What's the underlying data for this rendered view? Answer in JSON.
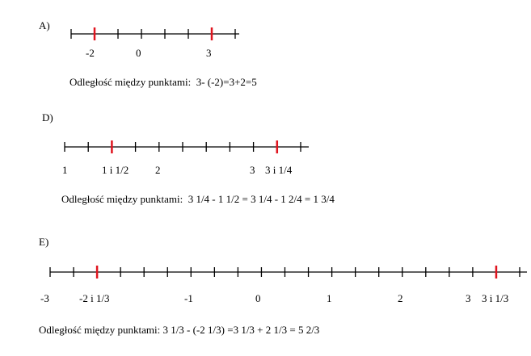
{
  "sections": [
    {
      "label": "A)",
      "tick_labels": [
        "-2",
        "0",
        "3"
      ],
      "text": "Odległość między punktami:  3- (-2)=3+2=5"
    },
    {
      "label": "D)",
      "tick_labels": [
        "1",
        "1 i 1/2",
        "2",
        "3",
        "3 i 1/4"
      ],
      "text": "Odległość między punktami:  3 1/4 - 1 1/2 = 3 1/4 - 1 2/4 = 1 3/4"
    },
    {
      "label": "E)",
      "tick_labels": [
        "-3",
        "-2 i 1/3",
        "-1",
        "0",
        "1",
        "2",
        "3",
        "3 i 1/3"
      ],
      "text": "Odległość między punktami: 3 1/3 - (-2 1/3) =3 1/3 + 2 1/3 = 5 2/3"
    }
  ]
}
